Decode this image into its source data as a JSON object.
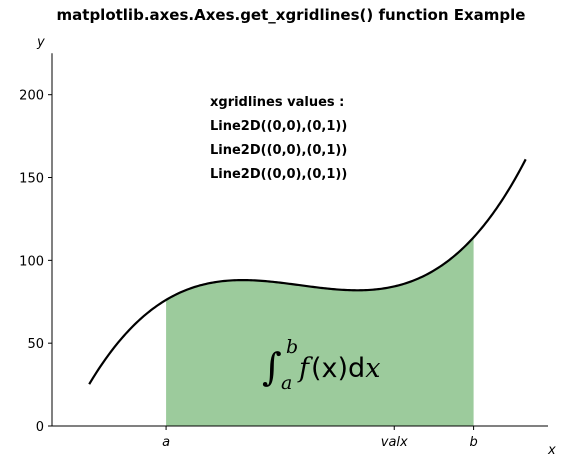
{
  "chart_data": {
    "type": "area",
    "title": "matplotlib.axes.Axes.get_xgridlines() function Example",
    "xlabel": "x",
    "ylabel": "y",
    "xlim": [
      0,
      10
    ],
    "ylim": [
      0,
      230
    ],
    "x_ticks": [
      {
        "value": 2.3,
        "label": "a"
      },
      {
        "value": 6.9,
        "label": "valx"
      },
      {
        "value": 8.5,
        "label": "b"
      }
    ],
    "y_ticks": [
      0,
      50,
      100,
      150,
      200
    ],
    "function": "(x - 3) * (x - 5) * (x - 7) + 85",
    "x_domain": [
      0.75,
      9.55
    ],
    "fill_interval": {
      "a": 2.3,
      "b": 8.5
    },
    "line_color": "#000000",
    "fill_color": "#9ccb9c",
    "grid": false,
    "annotation": {
      "heading": "xgridlines values :",
      "lines": [
        "Line2D((0,0),(0,1))",
        "Line2D((0,0),(0,1))",
        "Line2D((0,0),(0,1))"
      ]
    },
    "formula": {
      "lower": "a",
      "upper": "b",
      "body_f": "f",
      "body_args": "(x)",
      "body_d": "d",
      "body_var": "x"
    }
  }
}
